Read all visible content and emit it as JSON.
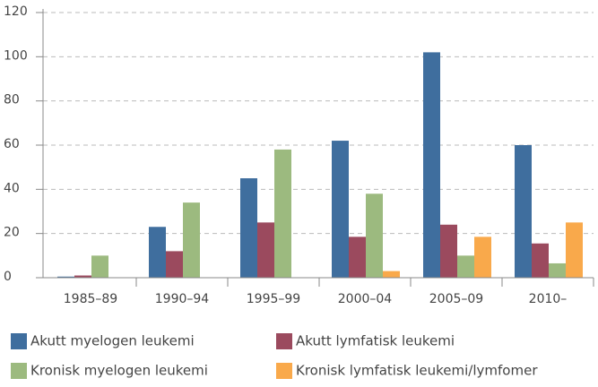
{
  "chart_data": {
    "type": "bar",
    "categories": [
      "1985–89",
      "1990–94",
      "1995–99",
      "2000–04",
      "2005–09",
      "2010–"
    ],
    "series": [
      {
        "name": "Akutt myelogen leukemi",
        "color": "#3f6e9e",
        "values": [
          0.5,
          23,
          45,
          62,
          102,
          60
        ]
      },
      {
        "name": "Akutt lymfatisk leukemi",
        "color": "#9b4a5e",
        "values": [
          1,
          12,
          25,
          18.5,
          24,
          15.5
        ]
      },
      {
        "name": "Kronisk myelogen leukemi",
        "color": "#9cba7f",
        "values": [
          10,
          34,
          58,
          38,
          10,
          6.5
        ]
      },
      {
        "name": "Kronisk lymfatisk leukemi/lymfomer",
        "color": "#f9a94b",
        "values": [
          null,
          null,
          null,
          3,
          18.5,
          25
        ]
      }
    ],
    "ylim": [
      0,
      120
    ],
    "yticks": [
      0,
      20,
      40,
      60,
      80,
      100,
      120
    ],
    "grid": true
  }
}
